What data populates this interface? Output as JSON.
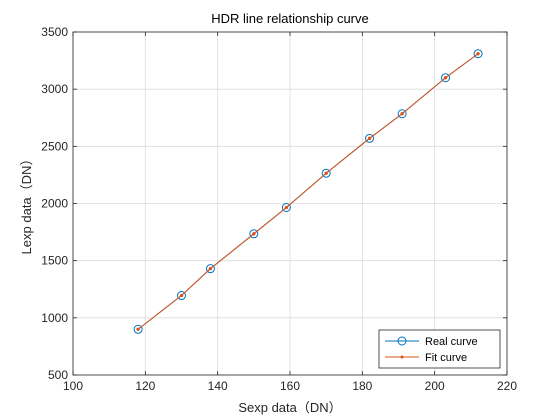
{
  "chart_data": {
    "type": "line",
    "title": "HDR line relationship curve",
    "xlabel": "Sexp data（DN）",
    "ylabel": "Lexp data（DN）",
    "xlim": [
      100,
      220
    ],
    "ylim": [
      500,
      3500
    ],
    "xticks": [
      100,
      120,
      140,
      160,
      180,
      200,
      220
    ],
    "yticks": [
      500,
      1000,
      1500,
      2000,
      2500,
      3000,
      3500
    ],
    "grid": true,
    "legend_position": "bottom-right",
    "series": [
      {
        "name": "Real curve",
        "color": "#0072BD",
        "marker": "circle",
        "x": [
          118,
          130,
          138,
          150,
          159,
          170,
          182,
          191,
          203,
          212
        ],
        "y": [
          900,
          1195,
          1430,
          1735,
          1965,
          2265,
          2570,
          2785,
          3100,
          3310
        ]
      },
      {
        "name": "Fit curve",
        "color": "#D95319",
        "marker": "point",
        "x": [
          118,
          130,
          138,
          150,
          159,
          170,
          182,
          191,
          203,
          212
        ],
        "y": [
          900,
          1195,
          1430,
          1735,
          1965,
          2265,
          2570,
          2785,
          3100,
          3310
        ]
      }
    ]
  }
}
